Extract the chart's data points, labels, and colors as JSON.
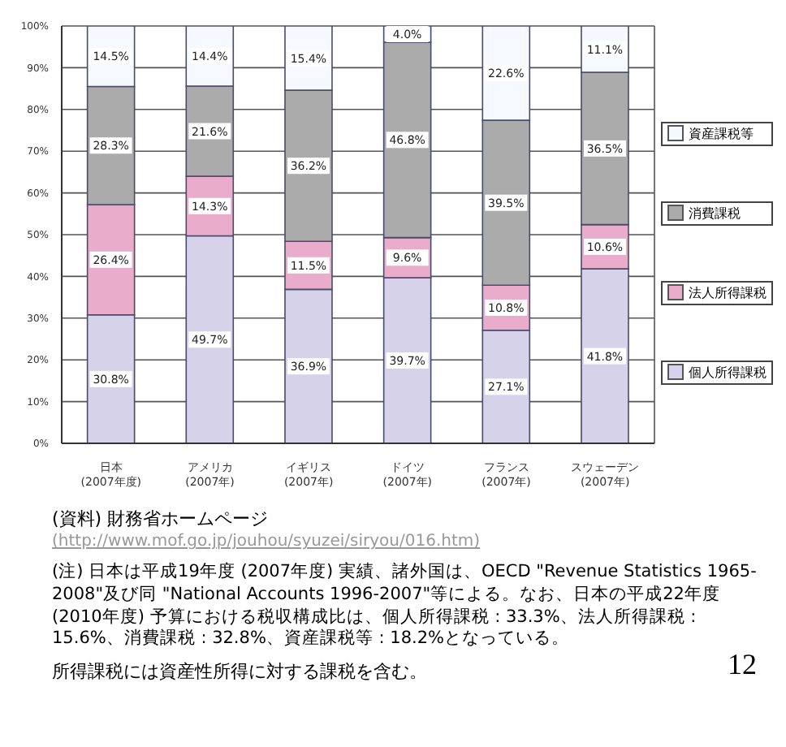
{
  "chart_data": {
    "type": "bar",
    "stacked": true,
    "categories": [
      "日本\n(2007年度)",
      "アメリカ\n(2007年)",
      "イギリス\n(2007年)",
      "ドイツ\n(2007年)",
      "フランス\n(2007年)",
      "スウェーデン\n(2007年)"
    ],
    "series": [
      {
        "name": "個人所得課税",
        "color": "#d6d2ea",
        "values": [
          30.8,
          49.7,
          36.9,
          39.7,
          27.1,
          41.8
        ],
        "value_labels": [
          "30.8%",
          "49.7%",
          "36.9%",
          "39.7%",
          "27.1%",
          "41.8%"
        ]
      },
      {
        "name": "法人所得課税",
        "color": "#eaaccb",
        "values": [
          26.4,
          14.3,
          11.5,
          9.6,
          10.8,
          10.6
        ],
        "value_labels": [
          "26.4%",
          "14.3%",
          "11.5%",
          "9.6%",
          "10.8%",
          "10.6%"
        ]
      },
      {
        "name": "消費課税",
        "color": "#ababab",
        "values": [
          28.3,
          21.6,
          36.2,
          46.8,
          39.5,
          36.5
        ],
        "value_labels": [
          "28.3%",
          "21.6%",
          "36.2%",
          "46.8%",
          "39.5%",
          "36.5%"
        ]
      },
      {
        "name": "資産課税等",
        "color": "#f6f9ff",
        "values": [
          14.5,
          14.4,
          15.4,
          4.0,
          22.6,
          11.1
        ],
        "value_labels": [
          "14.5%",
          "14.4%",
          "15.4%",
          "4.0%",
          "22.6%",
          "11.1%"
        ]
      }
    ],
    "ylim": [
      0,
      100
    ],
    "yticks": [
      {
        "value": 0,
        "label": "0%"
      },
      {
        "value": 10,
        "label": "10%"
      },
      {
        "value": 20,
        "label": "20%"
      },
      {
        "value": 30,
        "label": "30%"
      },
      {
        "value": 40,
        "label": "40%"
      },
      {
        "value": 50,
        "label": "50%"
      },
      {
        "value": 60,
        "label": "60%"
      },
      {
        "value": 70,
        "label": "70%"
      },
      {
        "value": 80,
        "label": "80%"
      },
      {
        "value": 90,
        "label": "90%"
      },
      {
        "value": 100,
        "label": "100%"
      }
    ],
    "grid": true,
    "legend": "right",
    "annotations": [
      "(資料) 財務省ホームページ",
      "(http://www.mof.go.jp/jouhou/syuzei/siryou/016.htm)",
      "(注) 日本は平成19年度 (2007年度) 実績、諸外国は、OECD \"Revenue Statistics 1965-2008\"及び同 \"National Accounts 1996-2007\"等による。なお、日本の平成22年度 (2010年度) 予算における税収構成比は、個人所得課税 : 33.3%、法人所得課税 : 15.6%、消費課税 : 32.8%、資産課税等 : 18.2%となっている。",
      "所得課税には資産性所得に対する課税を含む。",
      "12"
    ]
  }
}
